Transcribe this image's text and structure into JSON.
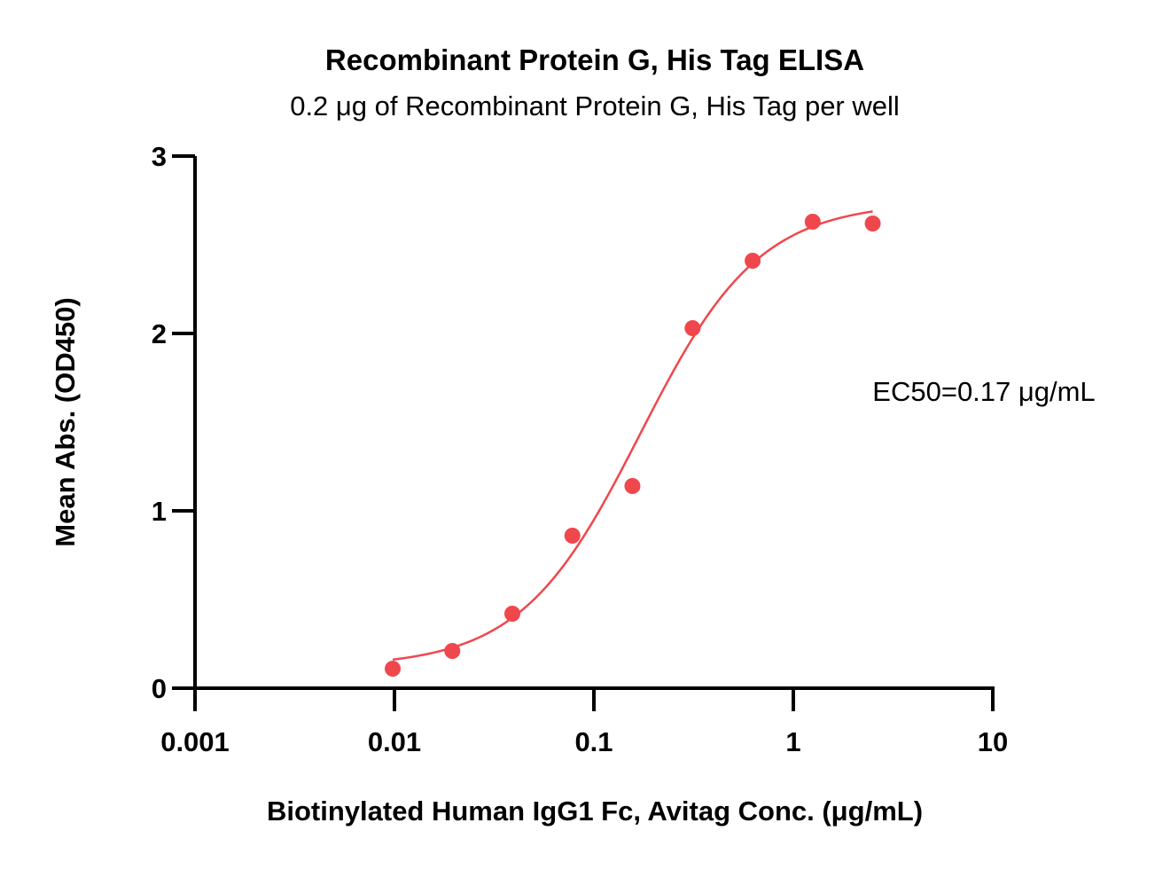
{
  "chart_data": {
    "type": "scatter",
    "title": "Recombinant Protein G, His Tag ELISA",
    "subtitle": "0.2 μg of Recombinant Protein G, His Tag per well",
    "xlabel": "Biotinylated Human IgG1 Fc, Avitag Conc. (μg/mL)",
    "ylabel": "Mean Abs. (OD450)",
    "x_scale": "log",
    "xlim": [
      0.001,
      10
    ],
    "ylim": [
      0,
      3
    ],
    "x_ticks": [
      0.001,
      0.01,
      0.1,
      1,
      10
    ],
    "x_tick_labels": [
      "0.001",
      "0.01",
      "0.1",
      "1",
      "10"
    ],
    "y_ticks": [
      0,
      1,
      2,
      3
    ],
    "y_tick_labels": [
      "0",
      "1",
      "2",
      "3"
    ],
    "grid": false,
    "legend": "none",
    "series": [
      {
        "x": [
          0.0098,
          0.0195,
          0.039,
          0.078,
          0.156,
          0.3125,
          0.625,
          1.25,
          2.5
        ],
        "y": [
          0.11,
          0.21,
          0.42,
          0.86,
          1.14,
          2.03,
          2.41,
          2.63,
          2.62
        ],
        "color": "#f0474c",
        "fit": {
          "type": "4PL",
          "x_range": [
            0.0098,
            2.5
          ],
          "bottom": 0.12,
          "top": 2.74,
          "ec50": 0.17,
          "hill": 1.45
        }
      }
    ],
    "annotation": "EC50=0.17 μg/mL"
  }
}
